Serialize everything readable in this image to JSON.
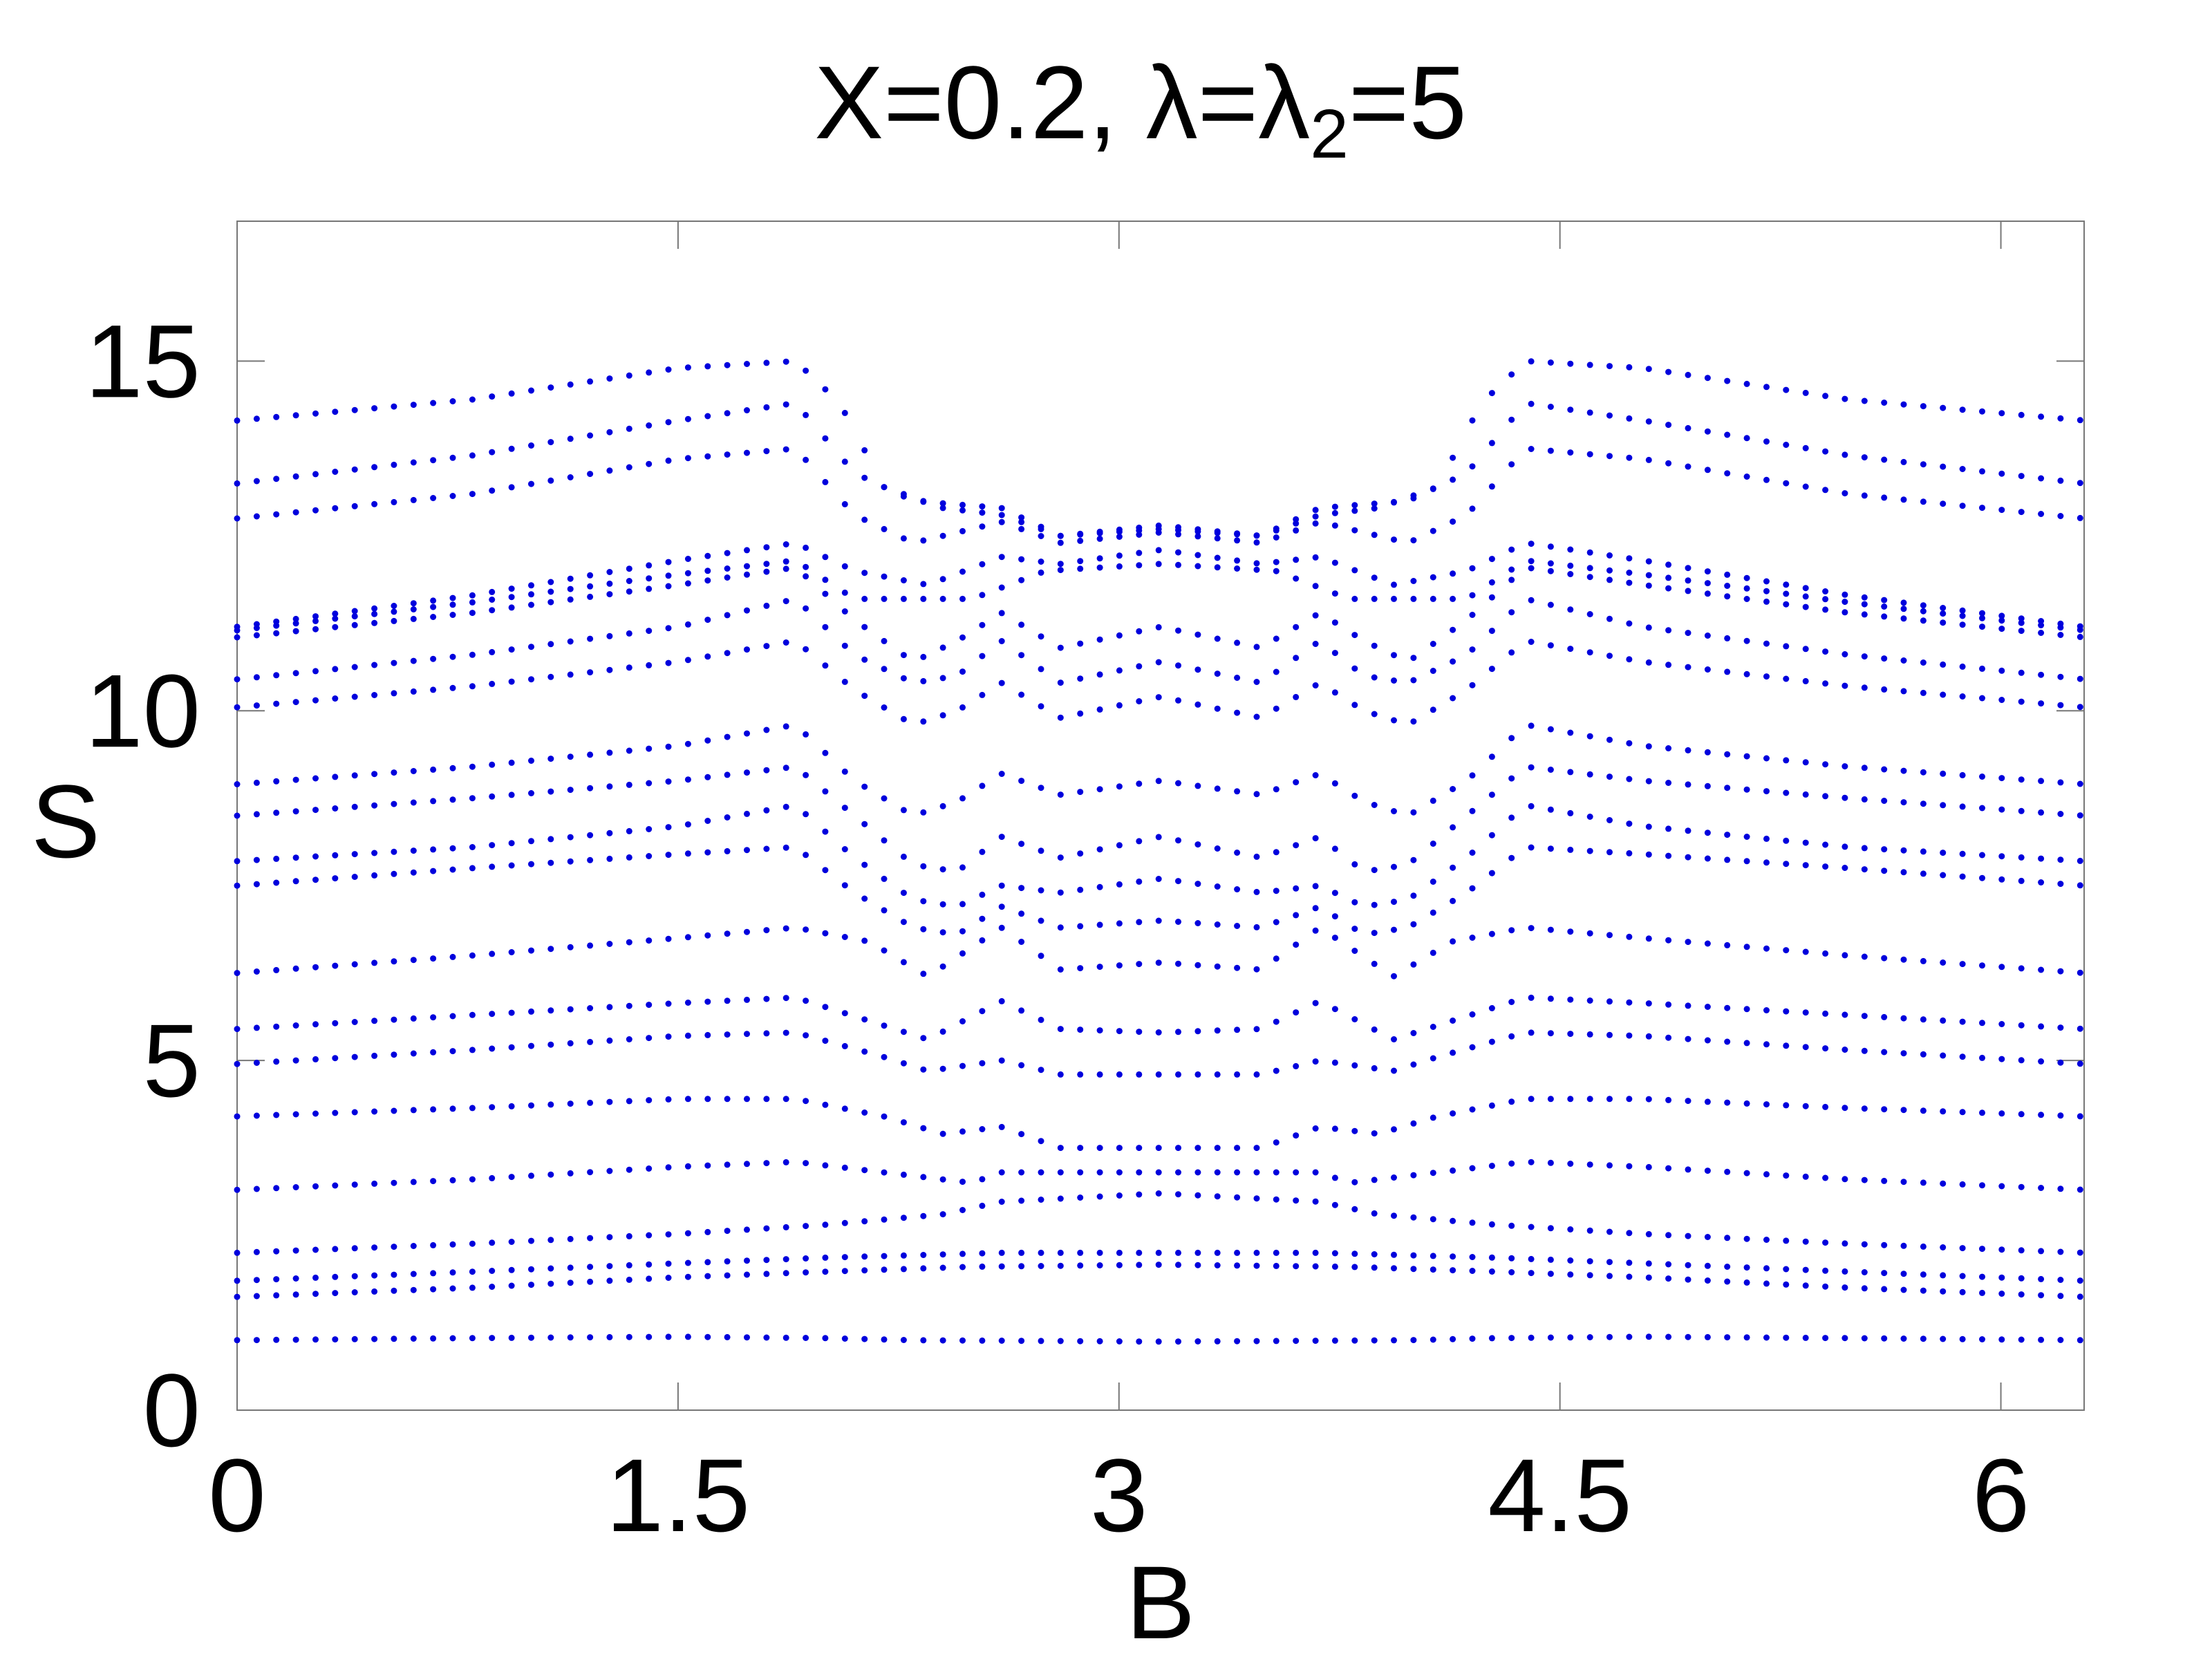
{
  "chart_data": {
    "type": "scatter",
    "title": {
      "pre": "X=0.2, λ=λ",
      "sub": "2",
      "post": "=5"
    },
    "xlabel": "B",
    "ylabel": "S",
    "xlim": [
      0,
      6.2832
    ],
    "ylim": [
      0,
      17
    ],
    "xticks": [
      {
        "value": 0,
        "label": "0"
      },
      {
        "value": 1.5,
        "label": "1.5"
      },
      {
        "value": 3,
        "label": "3"
      },
      {
        "value": 4.5,
        "label": "4.5"
      },
      {
        "value": 6,
        "label": "6"
      }
    ],
    "yticks": [
      {
        "value": 0,
        "label": "0"
      },
      {
        "value": 5,
        "label": "5"
      },
      {
        "value": 10,
        "label": "10"
      },
      {
        "value": 15,
        "label": "15"
      }
    ],
    "grid": false,
    "legend": "none",
    "marker_color": "#0000dd",
    "x_step": 0.0667,
    "series": [
      {
        "values": [
          [
            0,
            1.0
          ],
          [
            0.8,
            1.03
          ],
          [
            1.5,
            1.05
          ],
          [
            2.0,
            1.03
          ],
          [
            2.3,
            1.0
          ],
          [
            3.1416,
            0.98
          ]
        ]
      },
      {
        "values": [
          [
            0,
            1.62
          ],
          [
            0.8,
            1.75
          ],
          [
            1.5,
            1.9
          ],
          [
            2.0,
            1.98
          ],
          [
            2.5,
            2.05
          ],
          [
            3.1416,
            2.08
          ]
        ]
      },
      {
        "values": [
          [
            0,
            1.85
          ],
          [
            0.8,
            1.98
          ],
          [
            1.5,
            2.1
          ],
          [
            2.0,
            2.18
          ],
          [
            2.6,
            2.25
          ],
          [
            3.1416,
            2.25
          ]
        ]
      },
      {
        "values": [
          [
            0,
            2.25
          ],
          [
            0.8,
            2.38
          ],
          [
            1.5,
            2.52
          ],
          [
            2.0,
            2.65
          ],
          [
            2.4,
            2.8
          ],
          [
            2.6,
            2.98
          ],
          [
            3.1416,
            3.1
          ]
        ]
      },
      {
        "values": [
          [
            0,
            3.15
          ],
          [
            0.8,
            3.3
          ],
          [
            1.5,
            3.48
          ],
          [
            1.9,
            3.55
          ],
          [
            2.2,
            3.4
          ],
          [
            2.5,
            3.25
          ],
          [
            2.6,
            3.4
          ],
          [
            3.1416,
            3.4
          ]
        ]
      },
      {
        "values": [
          [
            0,
            4.2
          ],
          [
            0.8,
            4.32
          ],
          [
            1.5,
            4.45
          ],
          [
            1.9,
            4.45
          ],
          [
            2.2,
            4.2
          ],
          [
            2.4,
            3.95
          ],
          [
            2.6,
            4.05
          ],
          [
            2.8,
            3.75
          ],
          [
            3.1416,
            3.75
          ]
        ]
      },
      {
        "values": [
          [
            0,
            4.95
          ],
          [
            0.8,
            5.15
          ],
          [
            1.5,
            5.35
          ],
          [
            1.9,
            5.4
          ],
          [
            2.2,
            5.05
          ],
          [
            2.35,
            4.85
          ],
          [
            2.6,
            5.0
          ],
          [
            2.8,
            4.8
          ],
          [
            3.1416,
            4.8
          ]
        ]
      },
      {
        "values": [
          [
            0,
            5.45
          ],
          [
            0.8,
            5.65
          ],
          [
            1.5,
            5.82
          ],
          [
            1.9,
            5.9
          ],
          [
            2.2,
            5.5
          ],
          [
            2.35,
            5.3
          ],
          [
            2.6,
            5.85
          ],
          [
            2.8,
            5.45
          ],
          [
            3.1416,
            5.4
          ]
        ]
      },
      {
        "values": [
          [
            0,
            6.25
          ],
          [
            0.8,
            6.5
          ],
          [
            1.5,
            6.75
          ],
          [
            1.9,
            6.9
          ],
          [
            2.15,
            6.7
          ],
          [
            2.35,
            6.2
          ],
          [
            2.6,
            6.9
          ],
          [
            2.8,
            6.3
          ],
          [
            3.1416,
            6.4
          ]
        ]
      },
      {
        "values": [
          [
            0,
            7.5
          ],
          [
            0.8,
            7.75
          ],
          [
            1.5,
            7.95
          ],
          [
            1.9,
            8.05
          ],
          [
            2.1,
            7.4
          ],
          [
            2.3,
            6.9
          ],
          [
            2.45,
            6.8
          ],
          [
            2.6,
            7.2
          ],
          [
            2.8,
            6.9
          ],
          [
            3.1416,
            7.0
          ]
        ]
      },
      {
        "values": [
          [
            0,
            7.85
          ],
          [
            0.8,
            8.05
          ],
          [
            1.5,
            8.35
          ],
          [
            1.9,
            8.65
          ],
          [
            2.1,
            7.9
          ],
          [
            2.3,
            7.3
          ],
          [
            2.45,
            7.2
          ],
          [
            2.6,
            7.5
          ],
          [
            2.8,
            7.4
          ],
          [
            3.1416,
            7.6
          ]
        ]
      },
      {
        "values": [
          [
            0,
            8.5
          ],
          [
            0.8,
            8.75
          ],
          [
            1.5,
            9.0
          ],
          [
            1.9,
            9.2
          ],
          [
            2.1,
            8.5
          ],
          [
            2.3,
            7.8
          ],
          [
            2.45,
            7.7
          ],
          [
            2.6,
            8.2
          ],
          [
            2.8,
            7.9
          ],
          [
            3.1416,
            8.2
          ]
        ]
      },
      {
        "values": [
          [
            0,
            8.95
          ],
          [
            0.8,
            9.2
          ],
          [
            1.5,
            9.5
          ],
          [
            1.9,
            9.8
          ],
          [
            2.1,
            9.0
          ],
          [
            2.3,
            8.5
          ],
          [
            2.45,
            8.7
          ],
          [
            2.6,
            9.1
          ],
          [
            2.8,
            8.8
          ],
          [
            3.1416,
            9.0
          ]
        ]
      },
      {
        "values": [
          [
            0,
            10.05
          ],
          [
            0.8,
            10.35
          ],
          [
            1.5,
            10.7
          ],
          [
            1.9,
            11.0
          ],
          [
            2.1,
            10.3
          ],
          [
            2.3,
            9.8
          ],
          [
            2.45,
            10.0
          ],
          [
            2.6,
            10.4
          ],
          [
            2.8,
            9.9
          ],
          [
            3.1416,
            10.2
          ]
        ]
      },
      {
        "values": [
          [
            0,
            10.45
          ],
          [
            0.8,
            10.8
          ],
          [
            1.5,
            11.2
          ],
          [
            1.9,
            11.6
          ],
          [
            2.1,
            10.8
          ],
          [
            2.3,
            10.4
          ],
          [
            2.45,
            10.5
          ],
          [
            2.6,
            11.0
          ],
          [
            2.8,
            10.4
          ],
          [
            3.1416,
            10.7
          ]
        ]
      },
      {
        "values": [
          [
            0,
            11.05
          ],
          [
            0.8,
            11.4
          ],
          [
            1.5,
            11.8
          ],
          [
            1.9,
            12.05
          ],
          [
            2.1,
            11.3
          ],
          [
            2.3,
            10.7
          ],
          [
            2.45,
            11.0
          ],
          [
            2.6,
            11.4
          ],
          [
            2.8,
            10.9
          ],
          [
            3.1416,
            11.2
          ]
        ]
      },
      {
        "values": [
          [
            0,
            11.15
          ],
          [
            0.8,
            11.55
          ],
          [
            1.5,
            11.95
          ],
          [
            1.9,
            12.15
          ],
          [
            2.1,
            11.6
          ],
          [
            2.3,
            11.6
          ],
          [
            2.5,
            11.6
          ],
          [
            2.75,
            12.0
          ],
          [
            3.1416,
            12.1
          ]
        ]
      },
      {
        "values": [
          [
            0,
            11.2
          ],
          [
            0.8,
            11.65
          ],
          [
            1.5,
            12.15
          ],
          [
            1.9,
            12.4
          ],
          [
            2.1,
            12.0
          ],
          [
            2.35,
            11.8
          ],
          [
            2.6,
            12.2
          ],
          [
            2.8,
            12.1
          ],
          [
            3.1416,
            12.3
          ]
        ]
      },
      {
        "values": [
          [
            0,
            12.75
          ],
          [
            0.8,
            13.1
          ],
          [
            1.5,
            13.6
          ],
          [
            1.9,
            13.75
          ],
          [
            2.1,
            12.8
          ],
          [
            2.3,
            12.4
          ],
          [
            2.6,
            12.7
          ],
          [
            2.8,
            12.4
          ],
          [
            3.1416,
            12.55
          ]
        ]
      },
      {
        "values": [
          [
            0,
            13.25
          ],
          [
            0.8,
            13.65
          ],
          [
            1.5,
            14.15
          ],
          [
            1.9,
            14.4
          ],
          [
            2.1,
            13.4
          ],
          [
            2.3,
            13.0
          ],
          [
            2.6,
            12.9
          ],
          [
            2.8,
            12.5
          ],
          [
            3.1416,
            12.6
          ]
        ]
      },
      {
        "values": [
          [
            0,
            14.15
          ],
          [
            0.8,
            14.45
          ],
          [
            1.5,
            14.9
          ],
          [
            1.9,
            15.0
          ],
          [
            2.05,
            14.4
          ],
          [
            2.2,
            13.2
          ],
          [
            2.4,
            12.9
          ],
          [
            2.6,
            12.8
          ],
          [
            2.8,
            12.5
          ],
          [
            3.1416,
            12.65
          ]
        ]
      }
    ]
  }
}
